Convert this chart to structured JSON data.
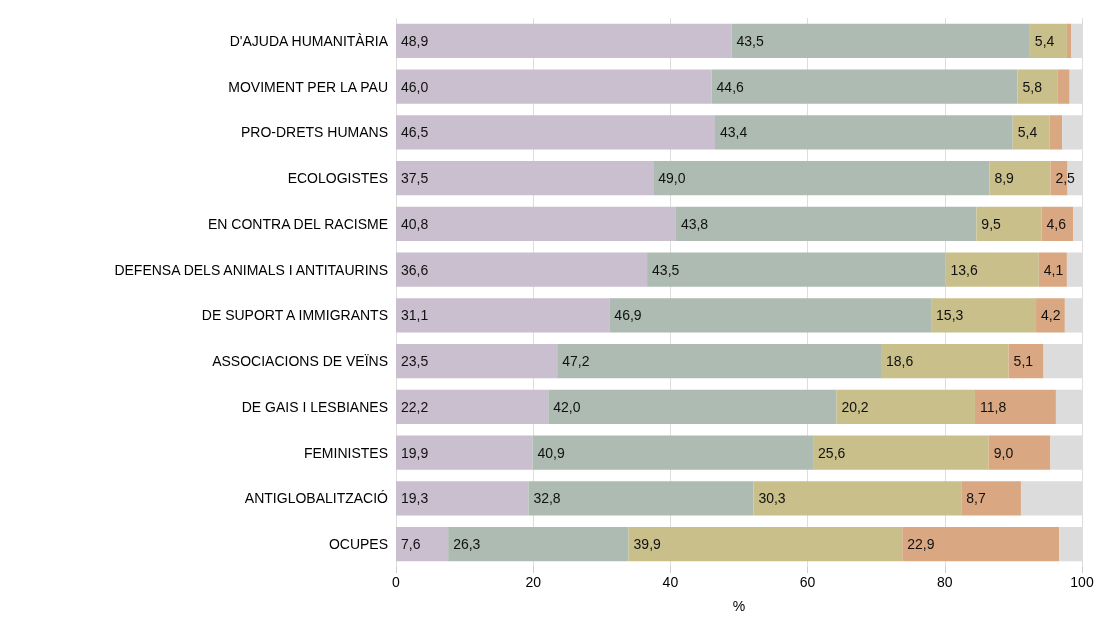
{
  "chart_data": {
    "type": "bar",
    "orientation": "horizontal",
    "stacked": true,
    "xlabel": "%",
    "grid": "x",
    "categories": [
      "D'AJUDA HUMANITÀRIA",
      "MOVIMENT PER LA PAU",
      "PRO-DRETS HUMANS",
      "ECOLOGISTES",
      "EN CONTRA DEL RACISME",
      "DEFENSA DELS ANIMALS I ANTITAURINS",
      "DE SUPORT A IMMIGRANTS",
      "ASSOCIACIONS DE VEÏNS",
      "DE GAIS I LESBIANES",
      "FEMINISTES",
      "ANTIGLOBALITZACIÓ",
      "OCUPES"
    ],
    "xlim": [
      0,
      100
    ],
    "xticks": [
      0,
      20,
      40,
      60,
      80,
      100
    ],
    "series": [
      {
        "color": "#c9bfcf",
        "values": [
          48.9,
          46.0,
          46.5,
          37.5,
          40.8,
          36.6,
          31.1,
          23.5,
          22.2,
          19.9,
          19.3,
          7.6
        ],
        "value_labels": [
          "48,9",
          "46,0",
          "46,5",
          "37,5",
          "40,8",
          "36,6",
          "31,1",
          "23,5",
          "22,2",
          "19,9",
          "19,3",
          "7,6"
        ]
      },
      {
        "color": "#adbbb3",
        "values": [
          43.5,
          44.6,
          43.4,
          49.0,
          43.8,
          43.5,
          46.9,
          47.2,
          42.0,
          40.9,
          32.8,
          26.3
        ],
        "value_labels": [
          "43,5",
          "44,6",
          "43,4",
          "49,0",
          "43,8",
          "43,5",
          "46,9",
          "47,2",
          "42,0",
          "40,9",
          "32,8",
          "26,3"
        ]
      },
      {
        "color": "#c8bf8b",
        "values": [
          5.4,
          5.8,
          5.4,
          8.9,
          9.5,
          13.6,
          15.3,
          18.6,
          20.2,
          25.6,
          30.3,
          39.9
        ],
        "value_labels": [
          "5,4",
          "5,8",
          "5,4",
          "8,9",
          "9,5",
          "13,6",
          "15,3",
          "18,6",
          "20,2",
          "25,6",
          "30,3",
          "39,9"
        ]
      },
      {
        "color": "#d9a882",
        "values": [
          0.6,
          1.8,
          1.8,
          2.5,
          4.6,
          4.1,
          4.2,
          5.1,
          11.8,
          9.0,
          8.7,
          22.9
        ],
        "value_labels": [
          null,
          null,
          null,
          "2,5",
          "4,6",
          "4,1",
          "4,2",
          "5,1",
          "11,8",
          "9,0",
          "8,7",
          "22,9"
        ]
      },
      {
        "color": "#dcdcdc",
        "values": [
          1.6,
          1.8,
          2.9,
          2.1,
          1.3,
          2.2,
          2.5,
          5.6,
          3.8,
          4.6,
          8.9,
          3.3
        ]
      }
    ]
  }
}
